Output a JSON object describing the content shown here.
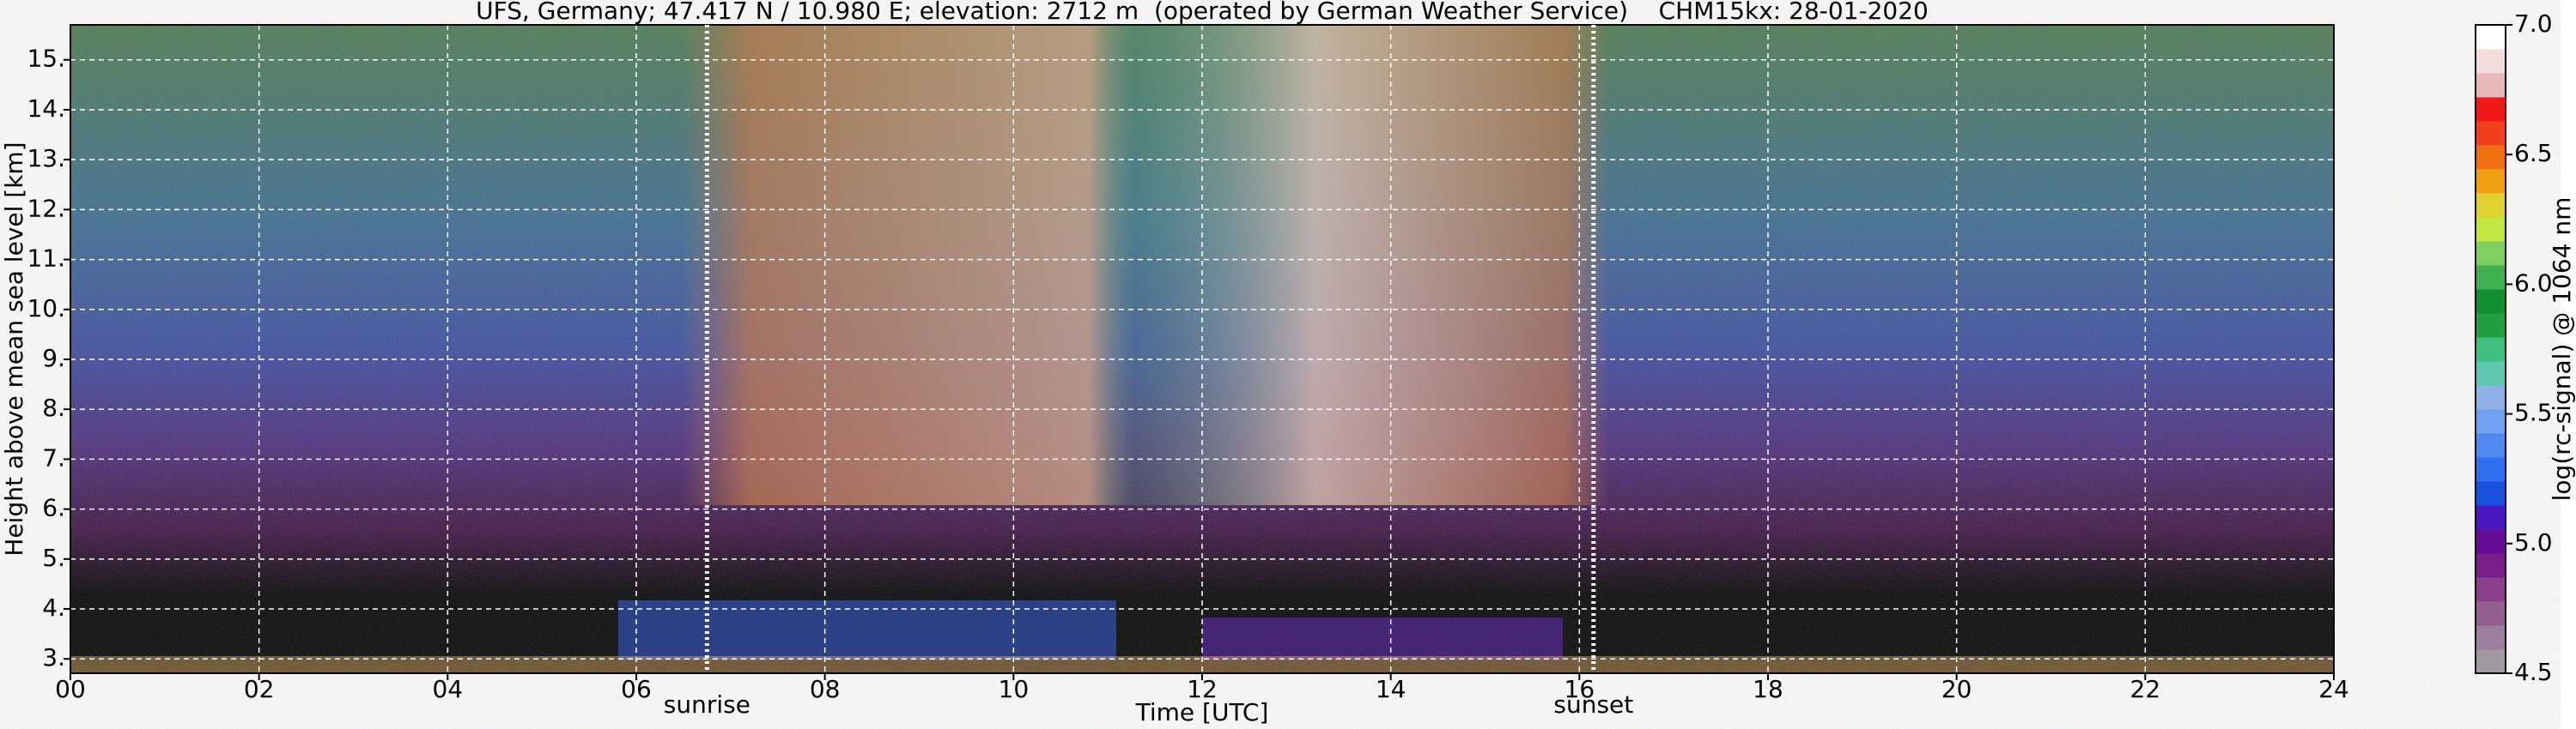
{
  "chart_data": {
    "type": "heatmap",
    "title": "UFS, Germany; 47.417 N / 10.980 E; elevation: 2712 m  (operated by German Weather Service)    CHM15kx: 28-01-2020",
    "x_label": "Time [UTC]",
    "y_label": "Height above mean sea level [km]",
    "xlim": [
      0,
      24
    ],
    "xticks": [
      {
        "value": 0,
        "label": "00"
      },
      {
        "value": 2,
        "label": "02"
      },
      {
        "value": 4,
        "label": "04"
      },
      {
        "value": 6,
        "label": "06"
      },
      {
        "value": 8,
        "label": "08"
      },
      {
        "value": 10,
        "label": "10"
      },
      12,
      14,
      16,
      18,
      20,
      22,
      24
    ],
    "ylim": [
      2.712,
      15.7
    ],
    "yticks": [
      {
        "value": 3,
        "label": "3."
      },
      {
        "value": 4,
        "label": "4."
      },
      {
        "value": 5,
        "label": "5."
      },
      {
        "value": 6,
        "label": "6."
      },
      {
        "value": 7,
        "label": "7."
      },
      {
        "value": 8,
        "label": "8."
      },
      {
        "value": 9,
        "label": "9."
      },
      {
        "value": 10,
        "label": "10."
      },
      {
        "value": 11,
        "label": "11."
      },
      {
        "value": 12,
        "label": "12."
      },
      {
        "value": 13,
        "label": "13."
      },
      {
        "value": 14,
        "label": "14."
      },
      {
        "value": 15,
        "label": "15."
      }
    ],
    "grid": true,
    "annotations": [
      {
        "x": 6.75,
        "label": "sunrise"
      },
      {
        "x": 16.15,
        "label": "sunset"
      }
    ],
    "colorbar": {
      "label": "log(rc-signal) @ 1064 nm",
      "lim": [
        4.5,
        7.0
      ],
      "ticks": [
        4.5,
        {
          "value": 5.0,
          "label": "5.0"
        },
        5.5,
        {
          "value": 6.0,
          "label": "6.0"
        },
        6.5,
        {
          "value": 7.0,
          "label": "7.0"
        }
      ],
      "colors": [
        "#a09aa0",
        "#9c7f9c",
        "#94608f",
        "#8a3f8a",
        "#7a1e8a",
        "#680c96",
        "#4a18c0",
        "#1a50e0",
        "#3070f0",
        "#5088f0",
        "#70a0f0",
        "#90b0e8",
        "#60c8b0",
        "#40c080",
        "#20a040",
        "#109030",
        "#40b050",
        "#80d060",
        "#c0e840",
        "#e0d030",
        "#f0a010",
        "#f07010",
        "#f04020",
        "#f01818",
        "#e8b8b8",
        "#f2dcdc",
        "#ffffff"
      ]
    }
  }
}
